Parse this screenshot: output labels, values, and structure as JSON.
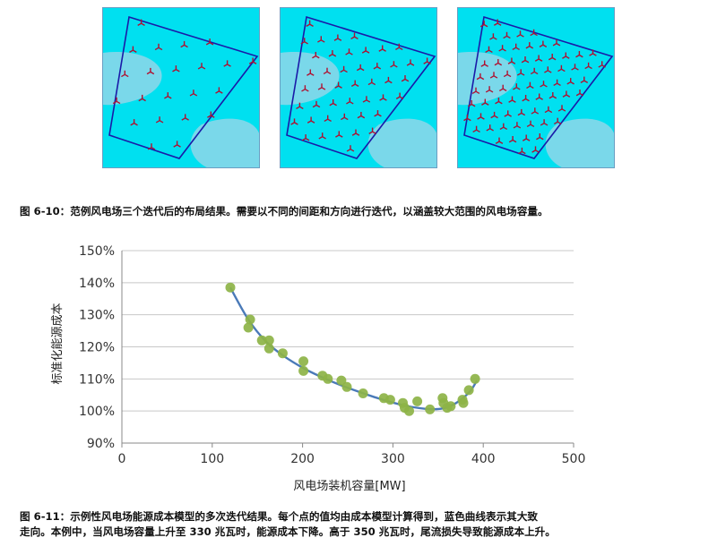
{
  "figure_top": {
    "caption": "图 6-10：范例风电场三个迭代后的布局结果。需要以不同的间距和方向进行迭代，以涵盖较大范围的风电场容量。",
    "panels": [
      {
        "name": "iteration-1",
        "turbine_rows": 4
      },
      {
        "name": "iteration-2",
        "turbine_rows": 7
      },
      {
        "name": "iteration-3",
        "turbine_rows": 9
      }
    ],
    "colors": {
      "sea": "#00e0f0",
      "shallow": "#7ad8ea",
      "boundary": "#1a1aa8",
      "turbine": "#b01030"
    }
  },
  "figure_bottom": {
    "caption_line1": "图 6-11：示例性风电场能源成本模型的多次迭代结果。每个点的值均由成本模型计算得到，蓝色曲线表示其大致",
    "caption_line2": "走向。本例中，当风电场容量上升至 330 兆瓦时，能源成本下降。高于 350 兆瓦时，尾流损失导致能源成本上升。"
  },
  "chart_data": {
    "type": "scatter",
    "title": "",
    "xlabel": "风电场装机容量[MW]",
    "ylabel": "标准化能源成本",
    "xlim": [
      0,
      500
    ],
    "ylim": [
      0.9,
      1.5
    ],
    "x_ticks": [
      0,
      100,
      200,
      300,
      400,
      500
    ],
    "x_tick_labels": [
      "0",
      "100",
      "200",
      "300",
      "400",
      "500"
    ],
    "y_ticks": [
      0.9,
      1.0,
      1.1,
      1.2,
      1.3,
      1.4,
      1.5
    ],
    "y_tick_labels": [
      "90%",
      "100%",
      "110%",
      "120%",
      "130%",
      "140%",
      "150%"
    ],
    "grid": "horizontal",
    "legend": "none",
    "point_color": "#8db347",
    "curve_color": "#4a7ab8",
    "points": [
      {
        "x": 120,
        "y": 1.385
      },
      {
        "x": 142,
        "y": 1.285
      },
      {
        "x": 140,
        "y": 1.26
      },
      {
        "x": 155,
        "y": 1.22
      },
      {
        "x": 163,
        "y": 1.22
      },
      {
        "x": 163,
        "y": 1.195
      },
      {
        "x": 178,
        "y": 1.18
      },
      {
        "x": 201,
        "y": 1.155
      },
      {
        "x": 201,
        "y": 1.125
      },
      {
        "x": 222,
        "y": 1.11
      },
      {
        "x": 228,
        "y": 1.1
      },
      {
        "x": 243,
        "y": 1.095
      },
      {
        "x": 249,
        "y": 1.075
      },
      {
        "x": 267,
        "y": 1.055
      },
      {
        "x": 290,
        "y": 1.04
      },
      {
        "x": 297,
        "y": 1.035
      },
      {
        "x": 311,
        "y": 1.025
      },
      {
        "x": 313,
        "y": 1.01
      },
      {
        "x": 318,
        "y": 1.0
      },
      {
        "x": 327,
        "y": 1.03
      },
      {
        "x": 341,
        "y": 1.005
      },
      {
        "x": 355,
        "y": 1.04
      },
      {
        "x": 356,
        "y": 1.025
      },
      {
        "x": 360,
        "y": 1.01
      },
      {
        "x": 364,
        "y": 1.015
      },
      {
        "x": 377,
        "y": 1.035
      },
      {
        "x": 378,
        "y": 1.025
      },
      {
        "x": 384,
        "y": 1.065
      },
      {
        "x": 391,
        "y": 1.1
      }
    ],
    "trend": [
      {
        "x": 120,
        "y": 1.385
      },
      {
        "x": 140,
        "y": 1.285
      },
      {
        "x": 160,
        "y": 1.215
      },
      {
        "x": 180,
        "y": 1.17
      },
      {
        "x": 200,
        "y": 1.135
      },
      {
        "x": 220,
        "y": 1.107
      },
      {
        "x": 240,
        "y": 1.083
      },
      {
        "x": 260,
        "y": 1.062
      },
      {
        "x": 280,
        "y": 1.043
      },
      {
        "x": 300,
        "y": 1.026
      },
      {
        "x": 320,
        "y": 1.013
      },
      {
        "x": 340,
        "y": 1.006
      },
      {
        "x": 355,
        "y": 1.008
      },
      {
        "x": 370,
        "y": 1.025
      },
      {
        "x": 385,
        "y": 1.06
      },
      {
        "x": 393,
        "y": 1.095
      }
    ]
  }
}
